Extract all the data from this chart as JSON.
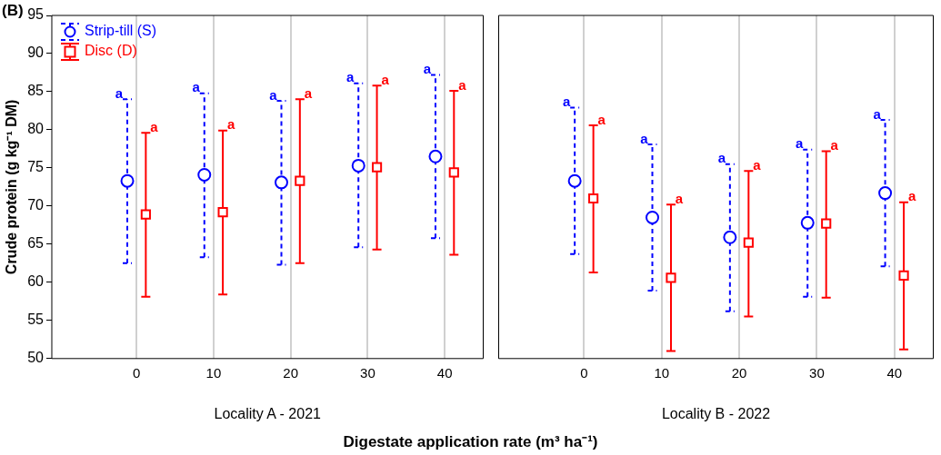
{
  "chart_data": [
    {
      "type": "scatter",
      "title": "(B)",
      "xlabel": "Locality A - 2021",
      "ylabel": "Crude protein (g kg⁻¹ DM)",
      "categories": [
        "0",
        "10",
        "20",
        "30",
        "40"
      ],
      "ylim": [
        50,
        95
      ],
      "yticks": [
        50,
        55,
        60,
        65,
        70,
        75,
        80,
        85,
        90,
        95
      ],
      "grid": "x",
      "legend": "top left",
      "annotations": [
        "a",
        "a",
        "a",
        "a",
        "a",
        "a",
        "a",
        "a",
        "a",
        "a",
        "Digestate application rate (m³ ha⁻¹)"
      ],
      "series": [
        {
          "name": "Strip-till (S)",
          "color": "#0000ff",
          "marker": "circle",
          "line_style": "dashed",
          "values": [
            73.3,
            74.1,
            73.1,
            75.3,
            76.5
          ],
          "errors": [
            [
              62.5,
              84.0
            ],
            [
              63.3,
              84.8
            ],
            [
              62.3,
              83.8
            ],
            [
              64.6,
              86.1
            ],
            [
              65.8,
              87.2
            ]
          ]
        },
        {
          "name": "Disc (D)",
          "color": "#ff0000",
          "marker": "square",
          "line_style": "solid",
          "values": [
            68.9,
            69.2,
            73.3,
            75.1,
            74.4
          ],
          "errors": [
            [
              58.1,
              79.6
            ],
            [
              58.4,
              79.9
            ],
            [
              62.5,
              84.0
            ],
            [
              64.3,
              85.8
            ],
            [
              63.6,
              85.1
            ]
          ]
        }
      ]
    },
    {
      "type": "scatter",
      "xlabel": "Locality B - 2022",
      "categories": [
        "0",
        "10",
        "20",
        "30",
        "40"
      ],
      "ylim": [
        50,
        95
      ],
      "yticks": [
        50,
        55,
        60,
        65,
        70,
        75,
        80,
        85,
        90,
        95
      ],
      "grid": "x",
      "tick_labels": "x",
      "annotations": [
        "a",
        "a",
        "a",
        "a",
        "a",
        "a",
        "a",
        "a",
        "a",
        "a"
      ],
      "series": [
        {
          "color": "#0000ff",
          "marker": "circle",
          "line_style": "dashed",
          "values": [
            73.3,
            68.5,
            65.9,
            67.8,
            71.7
          ],
          "errors": [
            [
              63.7,
              82.9
            ],
            [
              58.9,
              78.1
            ],
            [
              56.2,
              75.5
            ],
            [
              58.1,
              77.4
            ],
            [
              62.1,
              81.3
            ]
          ]
        },
        {
          "color": "#ff0000",
          "marker": "square",
          "line_style": "solid",
          "values": [
            71.0,
            60.6,
            65.2,
            67.7,
            60.9
          ],
          "errors": [
            [
              61.3,
              80.6
            ],
            [
              51.0,
              70.2
            ],
            [
              55.5,
              74.6
            ],
            [
              58.0,
              77.2
            ],
            [
              51.2,
              70.5
            ]
          ]
        }
      ]
    }
  ]
}
